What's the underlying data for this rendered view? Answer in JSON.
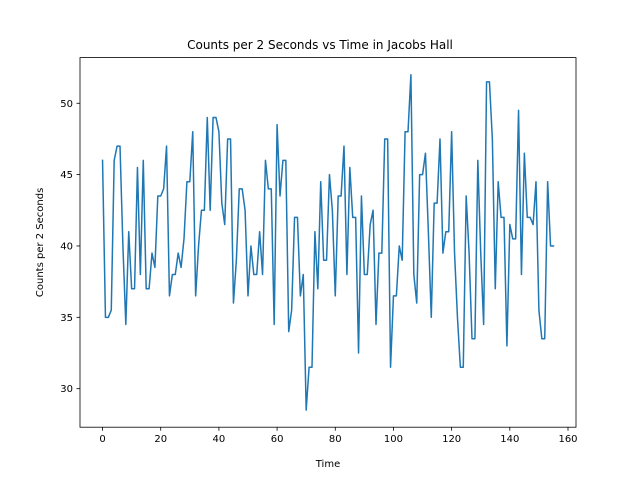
{
  "chart_data": {
    "type": "line",
    "title": "Counts per 2 Seconds vs Time in Jacobs Hall",
    "xlabel": "Time",
    "ylabel": "Counts per 2 Seconds",
    "xlim": [
      -7.75,
      162.75
    ],
    "ylim": [
      27.3,
      53.2
    ],
    "xticks": [
      0,
      20,
      40,
      60,
      80,
      100,
      120,
      140,
      160
    ],
    "yticks": [
      30,
      35,
      40,
      45,
      50
    ],
    "grid": false,
    "line_color": "#1f77b4",
    "series": [
      {
        "values": [
          46,
          35,
          35,
          35.5,
          46,
          47,
          47,
          40,
          34.5,
          41,
          37,
          37,
          45.5,
          38,
          46,
          37,
          37,
          39.5,
          38.5,
          43.5,
          43.5,
          44,
          47,
          36.5,
          38,
          38,
          39.5,
          38.5,
          40.5,
          44.5,
          44.5,
          48,
          36.5,
          40,
          42.5,
          42.5,
          49,
          42.5,
          49,
          49,
          48,
          43,
          41.5,
          47.5,
          47.5,
          36,
          39,
          44,
          44,
          42.5,
          36.5,
          40,
          38,
          38,
          41,
          38,
          46,
          44,
          44,
          34.5,
          48.5,
          43.5,
          46,
          46,
          34,
          35.5,
          42,
          42,
          36.5,
          38,
          28.5,
          31.5,
          31.5,
          41,
          37,
          44.5,
          39,
          39,
          45,
          42.5,
          36.5,
          43.5,
          43.5,
          47,
          38,
          45.5,
          42,
          42,
          32.5,
          43.5,
          38,
          38,
          41.5,
          42.5,
          34.5,
          39.5,
          39.5,
          47.5,
          47.5,
          31.5,
          36.5,
          36.5,
          40,
          39,
          48,
          48,
          52,
          38,
          36,
          45,
          45,
          46.5,
          41,
          35,
          43,
          43,
          47.5,
          39.5,
          41,
          41,
          48,
          39.5,
          35,
          31.5,
          31.5,
          43.5,
          39.5,
          33.5,
          33.5,
          46,
          39.5,
          34.5,
          51.5,
          51.5,
          47.5,
          37,
          44.5,
          42,
          42,
          33,
          41.5,
          40.5,
          40.5,
          49.5,
          38,
          46.5,
          42,
          42,
          41.5,
          44.5,
          35.5,
          33.5,
          33.5,
          44.5,
          40,
          40
        ]
      }
    ]
  }
}
